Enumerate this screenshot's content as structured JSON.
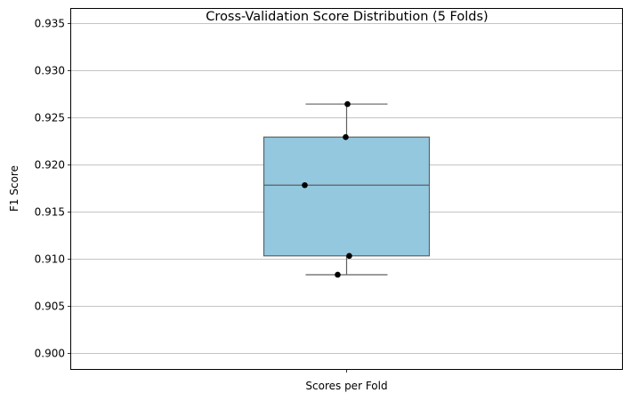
{
  "chart_data": {
    "type": "box",
    "title": "Cross-Validation Score Distribution (5 Folds)",
    "xlabel": "",
    "ylabel": "F1 Score",
    "categories": [
      "Scores per Fold"
    ],
    "ylim": [
      0.8983,
      0.9365
    ],
    "yticks": [
      0.9,
      0.905,
      0.91,
      0.915,
      0.92,
      0.925,
      0.93,
      0.935
    ],
    "ytick_labels": [
      "0.900",
      "0.905",
      "0.910",
      "0.915",
      "0.920",
      "0.925",
      "0.930",
      "0.935"
    ],
    "grid": "y",
    "box": {
      "whisker_low": 0.9083,
      "q1": 0.9103,
      "median": 0.9178,
      "q3": 0.9229,
      "whisker_high": 0.9264,
      "color": "#93c8df",
      "edge_color": "#606060"
    },
    "points": [
      0.9264,
      0.9229,
      0.9178,
      0.9103,
      0.9083
    ],
    "point_color": "#000000"
  }
}
